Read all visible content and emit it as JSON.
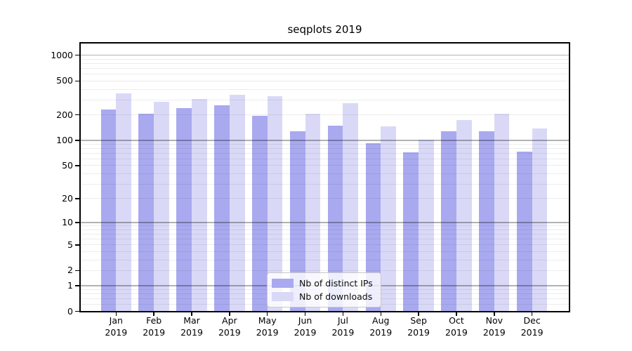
{
  "chart_data": {
    "type": "bar",
    "title": "seqplots 2019",
    "categories": [
      {
        "month": "Jan",
        "year": "2019"
      },
      {
        "month": "Feb",
        "year": "2019"
      },
      {
        "month": "Mar",
        "year": "2019"
      },
      {
        "month": "Apr",
        "year": "2019"
      },
      {
        "month": "May",
        "year": "2019"
      },
      {
        "month": "Jun",
        "year": "2019"
      },
      {
        "month": "Jul",
        "year": "2019"
      },
      {
        "month": "Aug",
        "year": "2019"
      },
      {
        "month": "Sep",
        "year": "2019"
      },
      {
        "month": "Oct",
        "year": "2019"
      },
      {
        "month": "Nov",
        "year": "2019"
      },
      {
        "month": "Dec",
        "year": "2019"
      }
    ],
    "series": [
      {
        "name": "Nb of distinct IPs",
        "color": "#a9a9f0",
        "values": [
          230,
          204,
          238,
          258,
          196,
          129,
          148,
          92,
          72,
          128,
          129,
          73
        ]
      },
      {
        "name": "Nb of downloads",
        "color": "#d9d9f7",
        "values": [
          355,
          285,
          305,
          345,
          328,
          207,
          272,
          145,
          102,
          174,
          205,
          137
        ]
      }
    ],
    "y_axis": {
      "scale": "log1p",
      "ticks": [
        0,
        1,
        2,
        5,
        10,
        20,
        50,
        100,
        200,
        500,
        1000
      ],
      "max": 1400,
      "major_gridlines": [
        1,
        10,
        100,
        1000
      ]
    },
    "legend": {
      "position": "lower-center"
    }
  }
}
